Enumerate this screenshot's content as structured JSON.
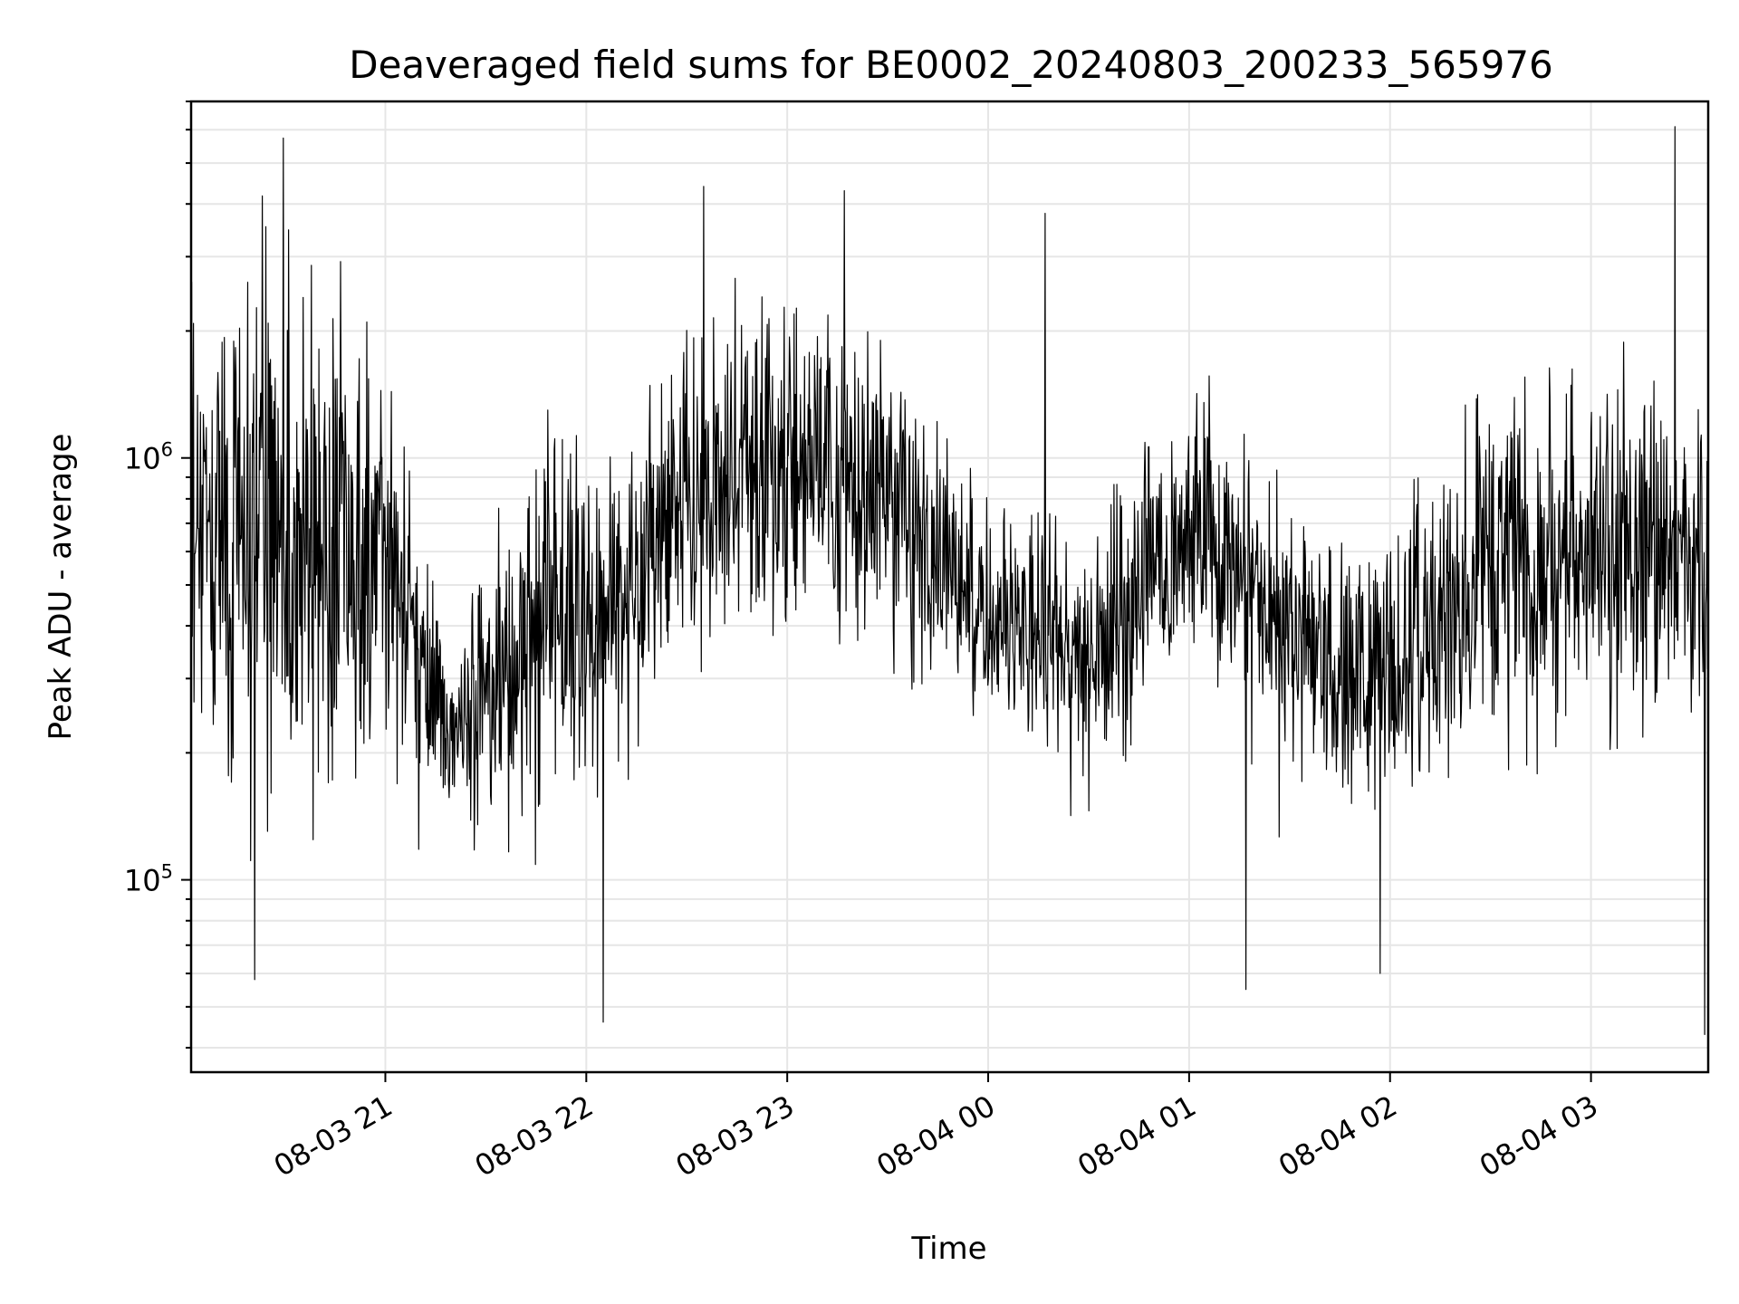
{
  "chart_data": {
    "type": "line",
    "title": "Deaveraged field sums for BE0002_20240803_200233_565976",
    "xlabel": "Time",
    "ylabel": "Peak ADU - average",
    "x_axis": {
      "type": "datetime",
      "range": [
        "2024-08-03 20:02",
        "2024-08-04 03:35"
      ],
      "tick_values": [
        "2024-08-03 21:00",
        "2024-08-03 22:00",
        "2024-08-03 23:00",
        "2024-08-04 00:00",
        "2024-08-04 01:00",
        "2024-08-04 02:00",
        "2024-08-04 03:00"
      ],
      "tick_labels": [
        "08-03 21",
        "08-03 22",
        "08-03 23",
        "08-04 00",
        "08-04 01",
        "08-04 02",
        "08-04 03"
      ],
      "tick_rotation_deg": 30
    },
    "y_axis": {
      "scale": "log",
      "range": [
        35000,
        7000000
      ],
      "tick_values": [
        100000,
        1000000
      ],
      "tick_base": "10",
      "tick_exponents": [
        "5",
        "6"
      ]
    },
    "grid": true,
    "color": "#000000",
    "envelope": [
      {
        "time": "2024-08-03 20:02",
        "low": 300000,
        "high": 2200000
      },
      {
        "time": "2024-08-03 20:20",
        "low": 150000,
        "high": 2400000
      },
      {
        "time": "2024-08-03 20:40",
        "low": 170000,
        "high": 2000000
      },
      {
        "time": "2024-08-03 21:00",
        "low": 250000,
        "high": 1700000
      },
      {
        "time": "2024-08-03 21:10",
        "low": 180000,
        "high": 600000
      },
      {
        "time": "2024-08-03 21:20",
        "low": 150000,
        "high": 350000
      },
      {
        "time": "2024-08-03 21:35",
        "low": 150000,
        "high": 600000
      },
      {
        "time": "2024-08-03 21:50",
        "low": 180000,
        "high": 1200000
      },
      {
        "time": "2024-08-03 22:05",
        "low": 200000,
        "high": 700000
      },
      {
        "time": "2024-08-03 22:30",
        "low": 350000,
        "high": 1800000
      },
      {
        "time": "2024-08-03 23:00",
        "low": 450000,
        "high": 2200000
      },
      {
        "time": "2024-08-03 23:30",
        "low": 400000,
        "high": 1800000
      },
      {
        "time": "2024-08-04 00:00",
        "low": 250000,
        "high": 700000
      },
      {
        "time": "2024-08-04 00:30",
        "low": 200000,
        "high": 600000
      },
      {
        "time": "2024-08-04 01:00",
        "low": 350000,
        "high": 1400000
      },
      {
        "time": "2024-08-04 01:30",
        "low": 220000,
        "high": 700000
      },
      {
        "time": "2024-08-04 02:00",
        "low": 150000,
        "high": 600000
      },
      {
        "time": "2024-08-04 02:30",
        "low": 250000,
        "high": 1200000
      },
      {
        "time": "2024-08-04 03:00",
        "low": 250000,
        "high": 1400000
      },
      {
        "time": "2024-08-04 03:35",
        "low": 300000,
        "high": 1200000
      }
    ],
    "extremes": [
      {
        "time": "2024-08-03 20:21",
        "value": 58000
      },
      {
        "time": "2024-08-03 22:05",
        "value": 46000
      },
      {
        "time": "2024-08-03 22:35",
        "value": 4400000
      },
      {
        "time": "2024-08-03 23:17",
        "value": 4300000
      },
      {
        "time": "2024-08-04 00:17",
        "value": 3800000
      },
      {
        "time": "2024-08-04 01:17",
        "value": 55000
      },
      {
        "time": "2024-08-04 01:57",
        "value": 60000
      },
      {
        "time": "2024-08-04 03:25",
        "value": 6100000
      },
      {
        "time": "2024-08-04 03:34",
        "value": 43000
      }
    ]
  }
}
